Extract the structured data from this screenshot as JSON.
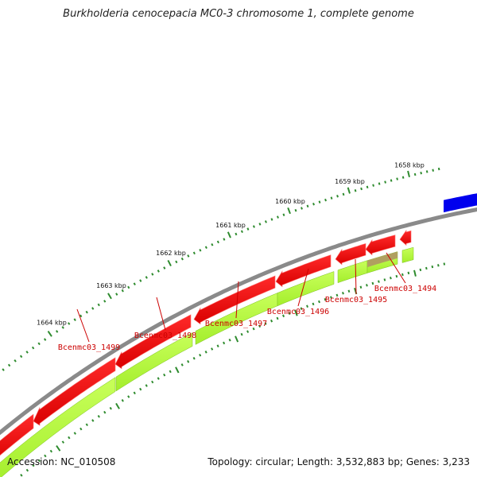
{
  "title": "Burkholderia cenocepacia MC0-3 chromosome 1, complete genome",
  "accession": "Accession: NC_010508",
  "summary": "Topology: circular; Length: 3,532,883 bp; Genes: 3,233",
  "colors": {
    "cds": "#ff0000",
    "gene": "#b3ff3a",
    "pseudo": "#b0a060",
    "other": "#0000ee",
    "backbone": "#8a8a8a",
    "ticks": "#2e8b2e",
    "label": "#cc0000"
  },
  "kbp_ticks": [
    {
      "label": "1658 kbp",
      "pos_kbp": 1658
    },
    {
      "label": "1659 kbp",
      "pos_kbp": 1659
    },
    {
      "label": "1660 kbp",
      "pos_kbp": 1660
    },
    {
      "label": "1661 kbp",
      "pos_kbp": 1661
    },
    {
      "label": "1662 kbp",
      "pos_kbp": 1662
    },
    {
      "label": "1663 kbp",
      "pos_kbp": 1663
    },
    {
      "label": "1664 kbp",
      "pos_kbp": 1664
    }
  ],
  "gene_labels": [
    {
      "name": "Bcenmc03_1494"
    },
    {
      "name": "Bcenmc03_1495"
    },
    {
      "name": "Bcenmc03_1496"
    },
    {
      "name": "Bcenmc03_1497"
    },
    {
      "name": "Bcenmc03_1498"
    },
    {
      "name": "Bcenmc03_1499"
    }
  ]
}
